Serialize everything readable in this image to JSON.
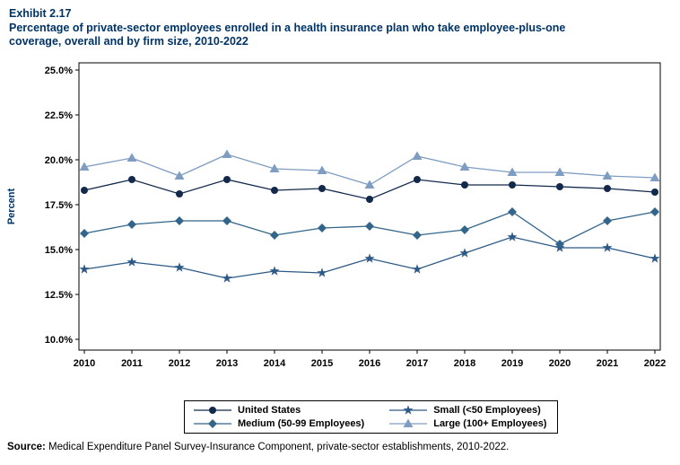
{
  "header": {
    "exhibit": "Exhibit 2.17",
    "title_line1": "Percentage of private-sector employees enrolled in a health insurance plan who take employee-plus-one",
    "title_line2": "coverage, overall and by firm size, 2010-2022"
  },
  "source": {
    "label": "Source:",
    "text": " Medical Expenditure Panel Survey-Insurance Component, private-sector establishments, 2010-2022."
  },
  "chart_data": {
    "type": "line",
    "title": "Percentage of private-sector employees enrolled in a health insurance plan who take employee-plus-one coverage, overall and by firm size, 2010-2022",
    "xlabel": "",
    "ylabel": "Percent",
    "ylim": [
      10,
      25
    ],
    "yticks": [
      "25.0%",
      "22.5%",
      "20.0%",
      "17.5%",
      "15.0%",
      "12.5%",
      "10.0%"
    ],
    "grid": false,
    "legend_position": "bottom",
    "x": [
      2010,
      2011,
      2012,
      2013,
      2014,
      2015,
      2016,
      2017,
      2018,
      2019,
      2020,
      2021,
      2022
    ],
    "series": [
      {
        "name": "United States",
        "marker": "circle",
        "color": "#13294b",
        "values": [
          18.3,
          18.9,
          18.1,
          18.9,
          18.3,
          18.4,
          17.8,
          18.9,
          18.6,
          18.6,
          18.5,
          18.4,
          18.2
        ]
      },
      {
        "name": "Small (<50 Employees)",
        "marker": "star",
        "color": "#2c5985",
        "values": [
          13.9,
          14.3,
          14.0,
          13.4,
          13.8,
          13.7,
          14.5,
          13.9,
          14.8,
          15.7,
          15.1,
          15.1,
          14.5
        ]
      },
      {
        "name": "Medium (50-99 Employees)",
        "marker": "diamond",
        "color": "#33658a",
        "values": [
          15.9,
          16.4,
          16.6,
          16.6,
          15.8,
          16.2,
          16.3,
          15.8,
          16.1,
          17.1,
          15.3,
          16.6,
          17.1
        ]
      },
      {
        "name": "Large (100+ Employees)",
        "marker": "triangle",
        "color": "#7f9dc1",
        "values": [
          19.6,
          20.1,
          19.1,
          20.3,
          19.5,
          19.4,
          18.6,
          20.2,
          19.6,
          19.3,
          19.3,
          19.1,
          19.0
        ]
      }
    ],
    "legend_order": [
      "United States",
      "Small (<50 Employees)",
      "Medium (50-99 Employees)",
      "Large (100+ Employees)"
    ]
  }
}
